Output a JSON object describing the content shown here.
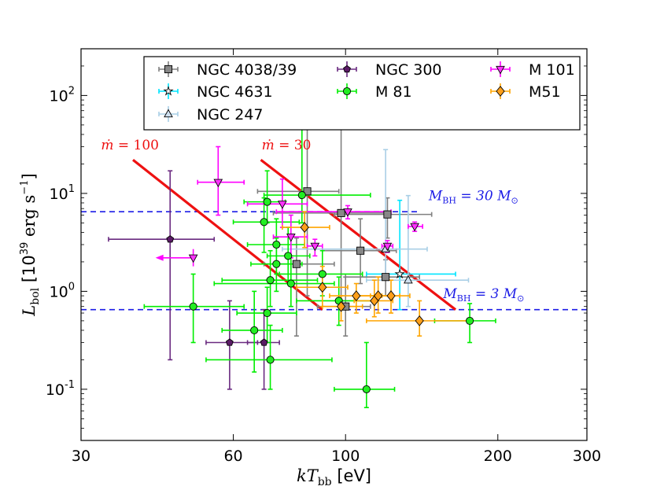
{
  "chart_data": {
    "type": "scatter",
    "xscale": "log",
    "yscale": "log",
    "xlim": [
      30,
      300
    ],
    "ylim": [
      0.03,
      300
    ],
    "xlabel": {
      "pre": "kT",
      "sub": "bb",
      "post": " [eV]"
    },
    "ylabel": {
      "pre": "L",
      "sub": "bol",
      "post": " [10",
      "exp": "39",
      "unit": " erg s",
      "unitexp": "−1",
      "close": "]"
    },
    "xticks": [
      {
        "value": 30,
        "label": "30"
      },
      {
        "value": 60,
        "label": "60"
      },
      {
        "value": 100,
        "label": "100"
      },
      {
        "value": 200,
        "label": "200"
      },
      {
        "value": 300,
        "label": "300"
      }
    ],
    "yticks": [
      {
        "value": 0.1,
        "base": "10",
        "exp": "-1"
      },
      {
        "value": 1,
        "base": "10",
        "exp": "0"
      },
      {
        "value": 10,
        "base": "10",
        "exp": "1"
      },
      {
        "value": 100,
        "base": "10",
        "exp": "2"
      }
    ],
    "legend": {
      "placement": "top",
      "ncol": 3
    },
    "series": [
      {
        "name": "NGC 4038/39",
        "marker": "square",
        "color": "#888888",
        "ecolor": "#808080",
        "points": [
          {
            "x": 84,
            "y": 10.5,
            "xlo": 67,
            "xhi": 97,
            "ylo": 0.9,
            "yhi": 45
          },
          {
            "x": 98,
            "y": 6.3,
            "xlo": 72,
            "xhi": 122,
            "ylo": 0.8,
            "yhi": 45
          },
          {
            "x": 100,
            "y": 0.7,
            "xlo": 88,
            "xhi": 112,
            "ylo": 0.35,
            "yhi": 1.4
          },
          {
            "x": 107,
            "y": 2.6,
            "xlo": 90,
            "xhi": 126,
            "ylo": 1.2,
            "yhi": 5.5
          },
          {
            "x": 120,
            "y": 1.4,
            "xlo": 100,
            "xhi": 140,
            "ylo": 0.9,
            "yhi": 2.1
          },
          {
            "x": 121,
            "y": 6.1,
            "xlo": 95,
            "xhi": 148,
            "ylo": 3.5,
            "yhi": 9
          },
          {
            "x": 80,
            "y": 1.9,
            "xlo": 69,
            "xhi": 95,
            "ylo": 0.35,
            "yhi": 3.5
          }
        ]
      },
      {
        "name": "NGC 4631",
        "marker": "star",
        "color": "#ffffff",
        "ecolor": "#00e5ff",
        "points": [
          {
            "x": 128,
            "y": 1.5,
            "xlo": 110,
            "xhi": 165,
            "ylo": 0.65,
            "yhi": 8.5
          }
        ]
      },
      {
        "name": "NGC 247",
        "marker": "triangle",
        "color": "#cfe0f0",
        "ecolor": "#a9cfe6",
        "points": [
          {
            "x": 120,
            "y": 2.7,
            "xlo": 75,
            "xhi": 145,
            "ylo": 1.4,
            "yhi": 28
          },
          {
            "x": 133,
            "y": 1.3,
            "xlo": 110,
            "xhi": 175,
            "ylo": 0.7,
            "yhi": 9.5
          }
        ]
      },
      {
        "name": "NGC 300",
        "marker": "pentagon",
        "color": "#5b1a66",
        "ecolor": "#6a2a80",
        "points": [
          {
            "x": 45,
            "y": 3.4,
            "xlo": 34,
            "xhi": 55,
            "ylo": 0.2,
            "yhi": 17
          },
          {
            "x": 59,
            "y": 0.3,
            "xlo": 53,
            "xhi": 67,
            "ylo": 0.1,
            "yhi": 0.8
          },
          {
            "x": 69,
            "y": 0.3,
            "xlo": 64,
            "xhi": 74,
            "ylo": 0.1,
            "yhi": 0.65
          }
        ]
      },
      {
        "name": "M 81",
        "marker": "circle",
        "color": "#22ee22",
        "ecolor": "#00ee00",
        "points": [
          {
            "x": 50,
            "y": 0.7,
            "xlo": 40,
            "xhi": 63,
            "ylo": 0.3,
            "yhi": 1.5
          },
          {
            "x": 66,
            "y": 0.4,
            "xlo": 57,
            "xhi": 75,
            "ylo": 0.15,
            "yhi": 1.0
          },
          {
            "x": 71,
            "y": 0.2,
            "xlo": 53,
            "xhi": 94,
            "ylo": 0.1,
            "yhi": 0.45
          },
          {
            "x": 70,
            "y": 0.6,
            "xlo": 61,
            "xhi": 80,
            "ylo": 0.3,
            "yhi": 1.1
          },
          {
            "x": 69,
            "y": 5.1,
            "xlo": 60,
            "xhi": 81,
            "ylo": 2.5,
            "yhi": 9
          },
          {
            "x": 70,
            "y": 8.2,
            "xlo": 63,
            "xhi": 76,
            "ylo": 5,
            "yhi": 17
          },
          {
            "x": 73,
            "y": 3.0,
            "xlo": 64,
            "xhi": 83,
            "ylo": 1.5,
            "yhi": 5.5
          },
          {
            "x": 73,
            "y": 1.9,
            "xlo": 65,
            "xhi": 82,
            "ylo": 1.0,
            "yhi": 3.5
          },
          {
            "x": 71,
            "y": 1.3,
            "xlo": 57,
            "xhi": 88,
            "ylo": 0.7,
            "yhi": 2.6
          },
          {
            "x": 77,
            "y": 2.3,
            "xlo": 70,
            "xhi": 85,
            "ylo": 1.2,
            "yhi": 4.5
          },
          {
            "x": 78,
            "y": 1.2,
            "xlo": 55,
            "xhi": 95,
            "ylo": 0.7,
            "yhi": 2.3
          },
          {
            "x": 82,
            "y": 9.6,
            "xlo": 69,
            "xhi": 112,
            "ylo": 5,
            "yhi": 50
          },
          {
            "x": 90,
            "y": 1.5,
            "xlo": 74,
            "xhi": 108,
            "ylo": 0.9,
            "yhi": 2.6
          },
          {
            "x": 97,
            "y": 0.8,
            "xlo": 80,
            "xhi": 115,
            "ylo": 0.45,
            "yhi": 1.4
          },
          {
            "x": 110,
            "y": 0.1,
            "xlo": 95,
            "xhi": 125,
            "ylo": 0.065,
            "yhi": 0.3
          },
          {
            "x": 176,
            "y": 0.5,
            "xlo": 150,
            "xhi": 198,
            "ylo": 0.3,
            "yhi": 0.75
          }
        ]
      },
      {
        "name": "M 101",
        "marker": "tri-down",
        "color": "#ff33ff",
        "ecolor": "#ff00ff",
        "points": [
          {
            "x": 56,
            "y": 13,
            "xlo": 51,
            "xhi": 63,
            "ylo": 6,
            "yhi": 30
          },
          {
            "x": 75,
            "y": 7.8,
            "xlo": 64,
            "xhi": 84,
            "ylo": 4.5,
            "yhi": 14
          },
          {
            "x": 78,
            "y": 3.6,
            "xlo": 72,
            "xhi": 84,
            "ylo": 2.2,
            "yhi": 6
          },
          {
            "x": 87,
            "y": 2.9,
            "xlo": 84,
            "xhi": 90,
            "ylo": 2.3,
            "yhi": 3.4
          },
          {
            "x": 101,
            "y": 6.5,
            "xlo": 73,
            "xhi": 123,
            "ylo": 5.5,
            "yhi": 7.5
          },
          {
            "x": 121,
            "y": 2.9,
            "xlo": 118,
            "xhi": 124,
            "ylo": 2.5,
            "yhi": 3.3
          },
          {
            "x": 137,
            "y": 4.6,
            "xlo": 133,
            "xhi": 142,
            "ylo": 4.1,
            "yhi": 5.1
          },
          {
            "x": 50,
            "y": 2.2,
            "xlo": 50,
            "xhi": 50,
            "ylo": 1.8,
            "yhi": 2.7,
            "upperlimit_x": true
          }
        ]
      },
      {
        "name": "M51",
        "marker": "diamond",
        "color": "#ff9f1a",
        "ecolor": "#ffa500",
        "points": [
          {
            "x": 83,
            "y": 4.5,
            "xlo": 75,
            "xhi": 93,
            "ylo": 2.8,
            "yhi": 6.5
          },
          {
            "x": 90,
            "y": 1.1,
            "xlo": 80,
            "xhi": 101,
            "ylo": 0.7,
            "yhi": 1.8
          },
          {
            "x": 98,
            "y": 0.7,
            "xlo": 90,
            "xhi": 108,
            "ylo": 0.5,
            "yhi": 0.9
          },
          {
            "x": 105,
            "y": 0.9,
            "xlo": 93,
            "xhi": 118,
            "ylo": 0.6,
            "yhi": 1.2
          },
          {
            "x": 114,
            "y": 0.8,
            "xlo": 104,
            "xhi": 124,
            "ylo": 0.55,
            "yhi": 1.3
          },
          {
            "x": 116,
            "y": 0.9,
            "xlo": 104,
            "xhi": 128,
            "ylo": 0.6,
            "yhi": 1.4
          },
          {
            "x": 123,
            "y": 0.9,
            "xlo": 112,
            "xhi": 134,
            "ylo": 0.6,
            "yhi": 1.3
          },
          {
            "x": 140,
            "y": 0.5,
            "xlo": 110,
            "xhi": 178,
            "ylo": 0.35,
            "yhi": 0.8
          }
        ]
      }
    ],
    "lines": [
      {
        "name": "mdot-100",
        "color": "#ee1111",
        "x": [
          38,
          90
        ],
        "y": [
          22,
          0.65
        ],
        "label": {
          "pre": "ṁ",
          "post": " = 100",
          "x": 30.8,
          "y": 28
        }
      },
      {
        "name": "mdot-30",
        "color": "#ee1111",
        "x": [
          68,
          165
        ],
        "y": [
          22,
          0.65
        ],
        "label": {
          "pre": "ṁ",
          "post": " = 30",
          "x": 64,
          "y": 28
        }
      }
    ],
    "hlines": [
      {
        "name": "mbh-30",
        "color": "#1c1ce6",
        "y": 6.5,
        "x": [
          30,
          140
        ],
        "label": {
          "pre": "M",
          "sub": "BH",
          "post": " = 30 M",
          "sun": "⊙",
          "x": 146,
          "y": 8.5
        }
      },
      {
        "name": "mbh-3",
        "color": "#1c1ce6",
        "y": 0.65,
        "x": [
          30,
          300
        ],
        "label": {
          "pre": "M",
          "sub": "BH",
          "post": " = 3 M",
          "sun": "⊙",
          "x": 156,
          "y": 0.85
        }
      }
    ]
  }
}
